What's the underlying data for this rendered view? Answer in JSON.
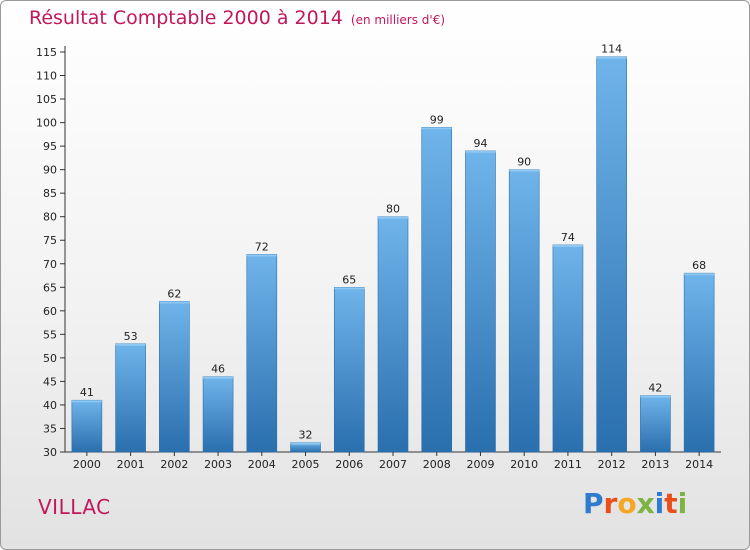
{
  "title": {
    "main": "Résultat Comptable 2000 à 2014",
    "unit": "(en milliers d'€)"
  },
  "place": "VILLAC",
  "logo": {
    "letters": [
      "P",
      "r",
      "o",
      "x",
      "i",
      "t",
      "i"
    ],
    "colors": [
      "#2e7bcf",
      "#e94e1b",
      "#f5a623",
      "#7cb342",
      "#2e7bcf",
      "#e94e1b",
      "#7cb342"
    ]
  },
  "colors": {
    "bar": "#3f8fd3",
    "bar_light": "#6fb4ea",
    "bar_dark": "#2a6fae",
    "title": "#c2185b"
  },
  "chart_data": {
    "type": "bar",
    "title": "Résultat Comptable 2000 à 2014",
    "xlabel": "",
    "ylabel": "",
    "categories": [
      "2000",
      "2001",
      "2002",
      "2003",
      "2004",
      "2005",
      "2006",
      "2007",
      "2008",
      "2009",
      "2010",
      "2011",
      "2012",
      "2013",
      "2014"
    ],
    "values": [
      41,
      53,
      62,
      46,
      72,
      32,
      65,
      80,
      99,
      94,
      90,
      74,
      114,
      42,
      68
    ],
    "ylim": [
      30,
      115
    ],
    "yticks": [
      30,
      35,
      40,
      45,
      50,
      55,
      60,
      65,
      70,
      75,
      80,
      85,
      90,
      95,
      100,
      105,
      110,
      115
    ],
    "grid": false
  }
}
